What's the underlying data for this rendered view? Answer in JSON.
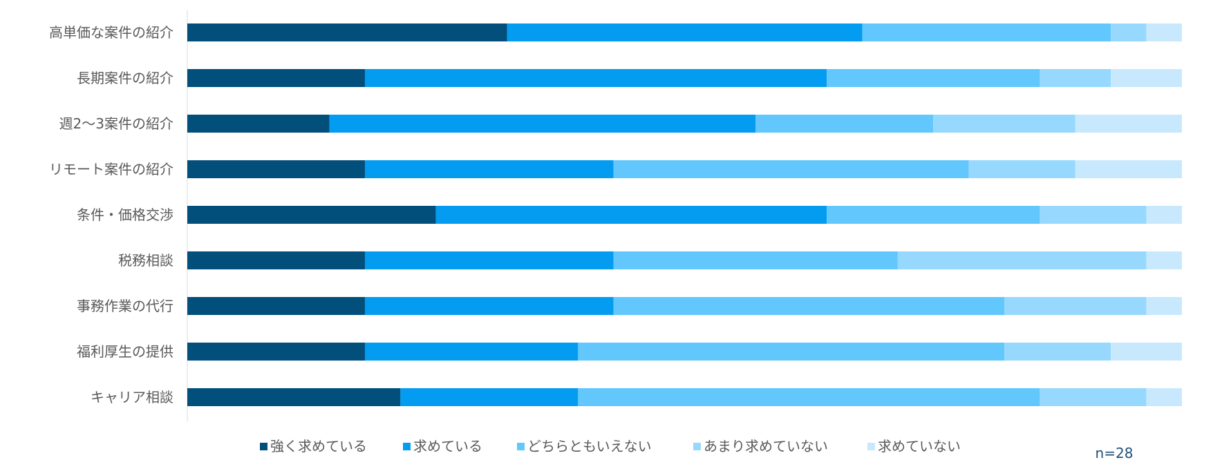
{
  "chart_data": {
    "type": "bar",
    "orientation": "horizontal",
    "stacked": "percent",
    "categories": [
      "高単価な案件の紹介",
      "長期案件の紹介",
      "週2〜3案件の紹介",
      "リモート案件の紹介",
      "条件・価格交渉",
      "税務相談",
      "事務作業の代行",
      "福利厚生の提供",
      "キャリア相談"
    ],
    "series": [
      {
        "name": "強く求めている",
        "color": "#014f7a",
        "values": [
          9,
          5,
          4,
          5,
          7,
          5,
          5,
          5,
          6
        ]
      },
      {
        "name": "求めている",
        "color": "#039cf0",
        "values": [
          10,
          13,
          12,
          7,
          11,
          7,
          7,
          6,
          5
        ]
      },
      {
        "name": "どちらともいえない",
        "color": "#62c7fd",
        "values": [
          7,
          6,
          5,
          10,
          6,
          8,
          11,
          12,
          13
        ]
      },
      {
        "name": "あまり求めていない",
        "color": "#97d9fe",
        "values": [
          1,
          2,
          4,
          3,
          3,
          7,
          4,
          3,
          3
        ]
      },
      {
        "name": "求めていない",
        "color": "#c8e9fd",
        "values": [
          1,
          2,
          3,
          3,
          1,
          1,
          1,
          2,
          1
        ]
      }
    ],
    "xlim": [
      0,
      28
    ],
    "grid": false,
    "legend_position": "bottom",
    "annotation": "n=28"
  }
}
